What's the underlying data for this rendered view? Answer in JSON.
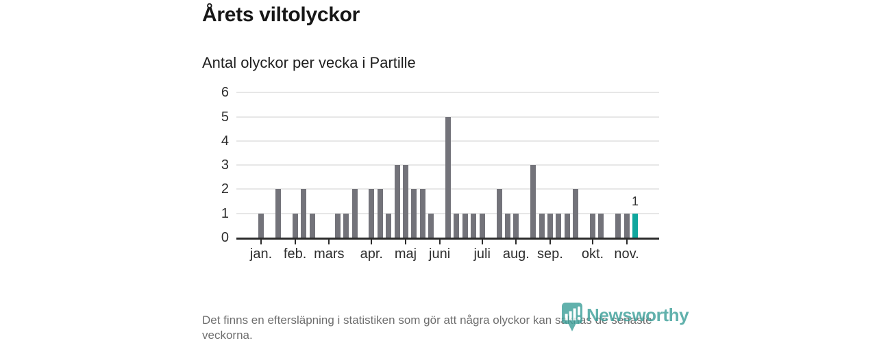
{
  "header": {
    "title": "Årets viltolyckor",
    "subtitle": "Antal olyckor per vecka i Partille"
  },
  "chart_data": {
    "type": "bar",
    "title": "Årets viltolyckor",
    "subtitle": "Antal olyckor per vecka i Partille",
    "xlabel": "",
    "ylabel": "",
    "x_unit": "vecka",
    "ylim": [
      0,
      6
    ],
    "yticks": [
      0,
      1,
      2,
      3,
      4,
      5,
      6
    ],
    "grid": true,
    "weeks": [
      1,
      2,
      3,
      4,
      5,
      6,
      7,
      8,
      9,
      10,
      11,
      12,
      13,
      14,
      15,
      16,
      17,
      18,
      19,
      20,
      21,
      22,
      23,
      24,
      25,
      26,
      27,
      28,
      29,
      30,
      31,
      32,
      33,
      34,
      35,
      36,
      37,
      38,
      39,
      40,
      41,
      42,
      43,
      44,
      45
    ],
    "values": [
      1,
      0,
      2,
      0,
      1,
      2,
      1,
      0,
      0,
      1,
      1,
      2,
      0,
      2,
      2,
      1,
      3,
      3,
      2,
      2,
      1,
      0,
      5,
      1,
      1,
      1,
      1,
      0,
      2,
      1,
      1,
      0,
      3,
      1,
      1,
      1,
      1,
      2,
      0,
      1,
      1,
      0,
      1,
      1,
      1
    ],
    "month_ticks": [
      {
        "label": "jan.",
        "week": 1
      },
      {
        "label": "feb.",
        "week": 5
      },
      {
        "label": "mars",
        "week": 9
      },
      {
        "label": "apr.",
        "week": 14
      },
      {
        "label": "maj",
        "week": 18
      },
      {
        "label": "juni",
        "week": 22
      },
      {
        "label": "juli",
        "week": 27
      },
      {
        "label": "aug.",
        "week": 31
      },
      {
        "label": "sep.",
        "week": 35
      },
      {
        "label": "okt.",
        "week": 40
      },
      {
        "label": "nov.",
        "week": 44
      }
    ],
    "bar_color": "#73737a",
    "highlight": {
      "week": 45,
      "value": 1,
      "label": "1",
      "color": "#0fa79e"
    },
    "legend": null
  },
  "footer": {
    "disclaimer": "Det finns en eftersläpning i statistiken som gör att några olyckor kan saknas de senaste veckorna."
  },
  "logo": {
    "text": "Newsworthy",
    "icon": "newsworthy-barchart-marker-icon",
    "color": "#3fa09a"
  }
}
